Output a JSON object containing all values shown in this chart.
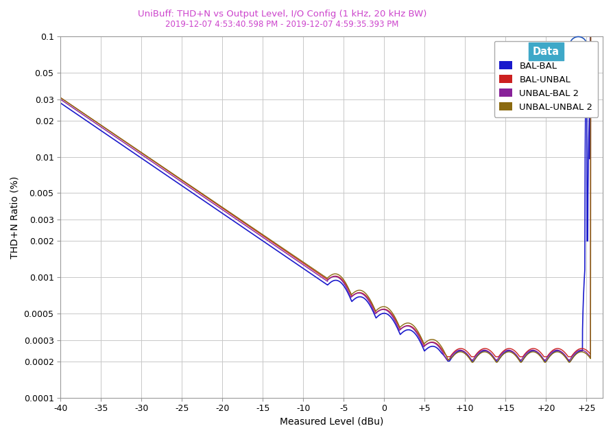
{
  "title_line1": "UniBuff: THD+N vs Output Level, I/O Config (1 kHz, 20 kHz BW)",
  "title_line2": "2019-12-07 4:53:40.598 PM - 2019-12-07 4:59:35.393 PM",
  "xlabel": "Measured Level (dBu)",
  "ylabel": "THD+N Ratio (%)",
  "xmin": -40,
  "xmax": 27,
  "ymin": 0.0001,
  "ymax": 0.1,
  "xtick_vals": [
    -40,
    -35,
    -30,
    -25,
    -20,
    -15,
    -10,
    -5,
    0,
    5,
    10,
    15,
    20,
    25
  ],
  "xtick_labels": [
    "-40",
    "-35",
    "-30",
    "-25",
    "-20",
    "-15",
    "-10",
    "-5",
    "0",
    "+5",
    "+10",
    "+15",
    "+20",
    "+25"
  ],
  "yticks": [
    0.0001,
    0.0002,
    0.0003,
    0.0005,
    0.001,
    0.002,
    0.003,
    0.005,
    0.01,
    0.02,
    0.03,
    0.05,
    0.1
  ],
  "ytick_labels": [
    "0.0001",
    "0.0002",
    "0.0003",
    "0.0005",
    "0.001",
    "0.002",
    "0.003",
    "0.005",
    "0.01",
    "0.02",
    "0.03",
    "0.05",
    "0.1"
  ],
  "legend_title": "Data",
  "legend_header_color": "#3ea8c8",
  "series": [
    {
      "label": "BAL-BAL",
      "color": "#1a1acc",
      "lw": 1.2
    },
    {
      "label": "BAL-UNBAL",
      "color": "#cc2020",
      "lw": 1.0
    },
    {
      "label": "UNBAL-BAL 2",
      "color": "#882299",
      "lw": 1.0
    },
    {
      "label": "UNBAL-UNBAL 2",
      "color": "#8b6a10",
      "lw": 1.0
    }
  ],
  "background_color": "#ffffff",
  "grid_color": "#c8c8c8",
  "title_color": "#cc44cc",
  "subtitle_color": "#cc44cc",
  "ap_logo_color": "#2255bb"
}
